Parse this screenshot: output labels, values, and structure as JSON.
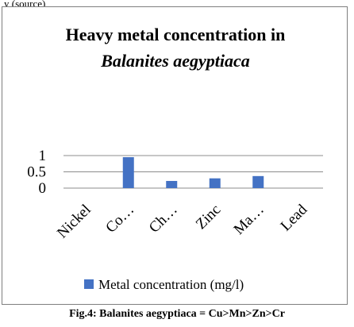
{
  "page_top_fragment": "y (source)",
  "chart_data": {
    "type": "bar",
    "title": "Heavy metal concentration in",
    "subtitle": "Balanites aegyptiaca",
    "categories": [
      "Nickel",
      "Co…",
      "Ch…",
      "Zinc",
      "Ma…",
      "Lead"
    ],
    "series": [
      {
        "name": "Metal concentration (mg/l)",
        "values": [
          0,
          0.95,
          0.22,
          0.3,
          0.37,
          0
        ],
        "color": "#4472c4"
      }
    ],
    "y_ticks": [
      "0",
      "0.5",
      "1"
    ],
    "ylim": [
      0,
      1
    ],
    "grid": true,
    "legend_position": "bottom"
  },
  "caption": "Fig.4: Balanites aegyptiaca = Cu>Mn>Zn>Cr"
}
